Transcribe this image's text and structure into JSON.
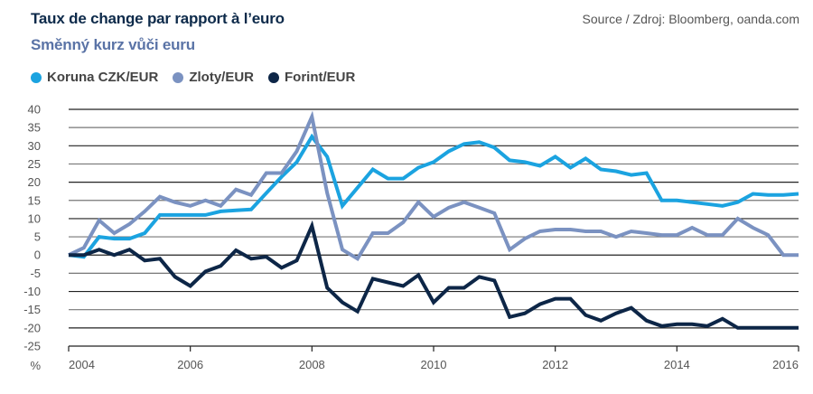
{
  "header": {
    "title": "Taux de change par rapport à l’euro",
    "subtitle": "Směnný kurz vůči euru",
    "source": "Source / Zdroj: Bloomberg, oanda.com"
  },
  "chart_data": {
    "type": "line",
    "title": "Taux de change par rapport à l’euro",
    "subtitle": "Směnný kurz vůči euru",
    "ylabel": "%",
    "xlabel": "",
    "ylim": [
      -25,
      40
    ],
    "xlim": [
      2004,
      2016
    ],
    "yticks": [
      "40",
      "35",
      "30",
      "25",
      "20",
      "15",
      "10",
      "5",
      "0",
      "-5",
      "-10",
      "-15",
      "-20",
      "-25"
    ],
    "ytick_values": [
      40,
      35,
      30,
      25,
      20,
      15,
      10,
      5,
      0,
      -5,
      -10,
      -15,
      -20,
      -25
    ],
    "xticks": [
      "2004",
      "2006",
      "2008",
      "2010",
      "2012",
      "2014",
      "2016"
    ],
    "xtick_values": [
      2004,
      2006,
      2008,
      2010,
      2012,
      2014,
      2016
    ],
    "grid": true,
    "legend_position": "top-left",
    "x": [
      2004.0,
      2004.25,
      2004.5,
      2004.75,
      2005.0,
      2005.25,
      2005.5,
      2005.75,
      2006.0,
      2006.25,
      2006.5,
      2006.75,
      2007.0,
      2007.25,
      2007.5,
      2007.75,
      2008.0,
      2008.25,
      2008.5,
      2008.75,
      2009.0,
      2009.25,
      2009.5,
      2009.75,
      2010.0,
      2010.25,
      2010.5,
      2010.75,
      2011.0,
      2011.25,
      2011.5,
      2011.75,
      2012.0,
      2012.25,
      2012.5,
      2012.75,
      2013.0,
      2013.25,
      2013.5,
      2013.75,
      2014.0,
      2014.25,
      2014.5,
      2014.75,
      2015.0,
      2015.25,
      2015.5,
      2015.75,
      2016.0
    ],
    "series": [
      {
        "name": "Koruna CZK/EUR",
        "color": "#1ba3e0",
        "values": [
          0,
          -0.5,
          5,
          4.5,
          4.5,
          6,
          11,
          11,
          11,
          11,
          12,
          12.3,
          12.5,
          17,
          21.5,
          25.5,
          32.5,
          27,
          13.5,
          18.5,
          23.5,
          21,
          21,
          24,
          25.5,
          28.5,
          30.5,
          31,
          29.5,
          26,
          25.5,
          24.5,
          27,
          24,
          26.5,
          23.5,
          23,
          22,
          22.5,
          15,
          15,
          14.5,
          14,
          13.5,
          14.5,
          16.8,
          16.5,
          16.5,
          16.8
        ]
      },
      {
        "name": "Zloty/EUR",
        "color": "#7b92c1",
        "values": [
          0,
          2,
          9.5,
          6,
          8.5,
          12,
          16,
          14.5,
          13.5,
          15,
          13.5,
          18,
          16.5,
          22.5,
          22.5,
          28.5,
          38,
          17,
          1.5,
          -1,
          6,
          6,
          9,
          14.5,
          10.5,
          13,
          14.5,
          13,
          11.5,
          1.5,
          4.5,
          6.5,
          7,
          7,
          6.5,
          6.5,
          5,
          6.5,
          6,
          5.5,
          5.5,
          7.5,
          5.5,
          5.5,
          10,
          7.5,
          5.5,
          0,
          0
        ]
      },
      {
        "name": "Forint/EUR",
        "color": "#0d2647",
        "values": [
          0,
          0,
          1.5,
          0,
          1.5,
          -1.5,
          -1,
          -6,
          -8.5,
          -4.5,
          -3,
          1.3,
          -1,
          -0.5,
          -3.5,
          -1.5,
          8,
          -9,
          -13,
          -15.5,
          -6.5,
          -7.5,
          -8.5,
          -5.5,
          -13,
          -9,
          -9,
          -6,
          -7,
          -17,
          -16,
          -13.5,
          -12,
          -12,
          -16.5,
          -18,
          -16,
          -14.5,
          -18,
          -19.5,
          -19,
          -19,
          -19.5,
          -17.5,
          -20,
          -20,
          -20,
          -20,
          -20
        ]
      }
    ]
  }
}
